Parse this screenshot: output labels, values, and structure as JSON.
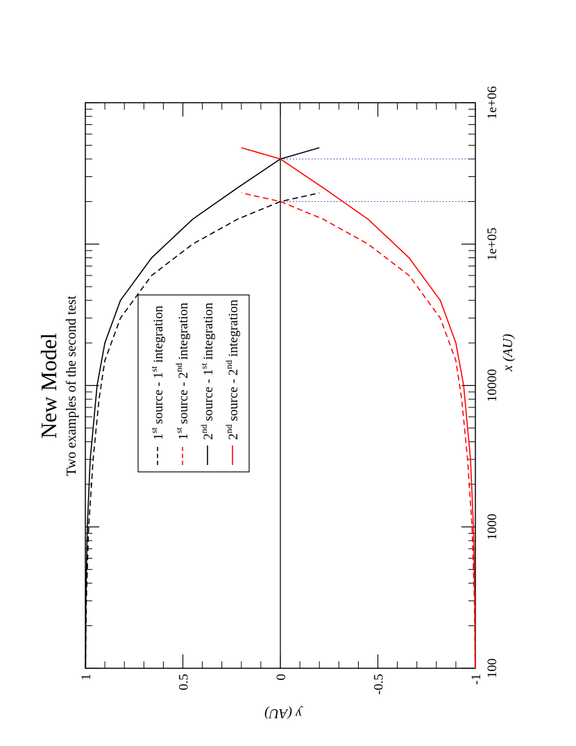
{
  "chart_data": {
    "type": "line",
    "title": "New Model",
    "subtitle": "Two examples of the second test",
    "xlabel": "x (AU)",
    "ylabel": "y (AU)",
    "x_scale": "log",
    "xlim": [
      100,
      1000000
    ],
    "ylim": [
      -1,
      1
    ],
    "x_major_ticks": [
      100,
      1000,
      10000,
      100000,
      1000000
    ],
    "x_tick_labels": [
      "100",
      "1000",
      "10000",
      "1e+05",
      "1e+06"
    ],
    "y_major_ticks": [
      1,
      0.5,
      0,
      -0.5,
      -1
    ],
    "y_tick_labels": [
      "1",
      "0.5",
      "0",
      "-0.5",
      "-1"
    ],
    "grid": false,
    "orientation": "rotated 90 degrees clockwise",
    "legend_position": "upper-left of plot (rotated)",
    "zero_line": true,
    "crossing_markers": [
      200000,
      400000
    ],
    "series": [
      {
        "name_main": "1",
        "name_sup": "st",
        "name_mid": " source - 1",
        "name_sup2": "st",
        "name_end": " integration",
        "color": "#000000",
        "dash": "dashed",
        "x": [
          100,
          300,
          1000,
          3000,
          8000,
          15000,
          30000,
          60000,
          100000,
          150000,
          200000,
          230000
        ],
        "y": [
          0.999,
          0.995,
          0.983,
          0.96,
          0.93,
          0.9,
          0.82,
          0.66,
          0.45,
          0.22,
          0.0,
          -0.2
        ]
      },
      {
        "name_main": "1",
        "name_sup": "st",
        "name_mid": " source - 2",
        "name_sup2": "nd",
        "name_end": " integration",
        "color": "#ff0000",
        "dash": "dashed",
        "x": [
          100,
          300,
          1000,
          3000,
          8000,
          15000,
          30000,
          60000,
          100000,
          150000,
          200000,
          230000
        ],
        "y": [
          -0.999,
          -0.995,
          -0.983,
          -0.96,
          -0.93,
          -0.9,
          -0.82,
          -0.66,
          -0.45,
          -0.22,
          0.0,
          0.2
        ]
      },
      {
        "name_main": "2",
        "name_sup": "nd",
        "name_mid": " source - 1",
        "name_sup2": "st",
        "name_end": " integration",
        "color": "#000000",
        "dash": "solid",
        "x": [
          100,
          300,
          1000,
          3000,
          10000,
          20000,
          40000,
          80000,
          150000,
          250000,
          400000,
          480000
        ],
        "y": [
          0.999,
          0.997,
          0.99,
          0.975,
          0.94,
          0.9,
          0.82,
          0.66,
          0.45,
          0.22,
          0.0,
          -0.2
        ]
      },
      {
        "name_main": "2",
        "name_sup": "nd",
        "name_mid": " source - 2",
        "name_sup2": "nd",
        "name_end": " integration",
        "color": "#ff0000",
        "dash": "solid",
        "x": [
          100,
          300,
          1000,
          3000,
          10000,
          20000,
          40000,
          80000,
          150000,
          250000,
          400000,
          480000
        ],
        "y": [
          -0.999,
          -0.997,
          -0.99,
          -0.975,
          -0.94,
          -0.9,
          -0.82,
          -0.66,
          -0.45,
          -0.22,
          0.0,
          0.2
        ]
      }
    ]
  }
}
